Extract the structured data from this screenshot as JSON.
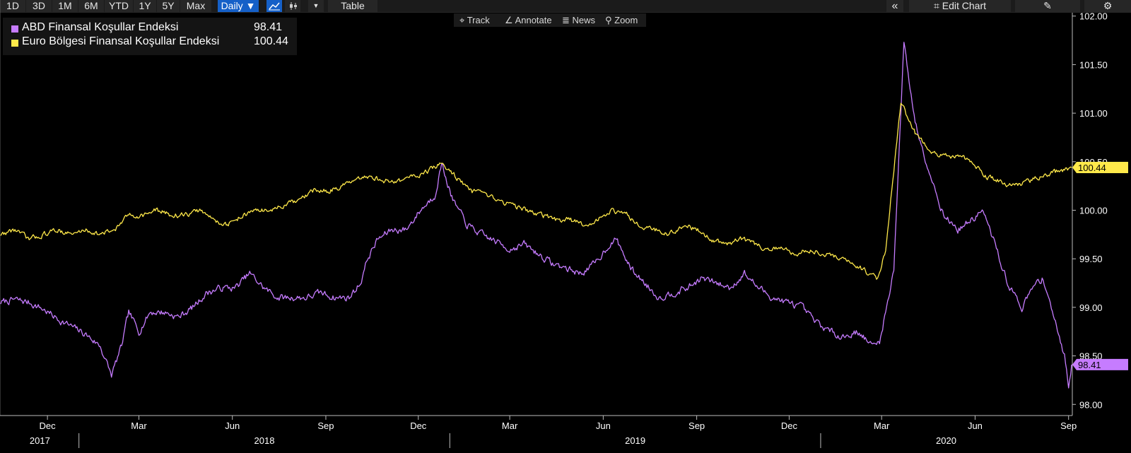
{
  "toolbar": {
    "ranges": [
      "1D",
      "3D",
      "1M",
      "6M",
      "YTD",
      "1Y",
      "5Y",
      "Max"
    ],
    "frequency": "Daily ▼",
    "table_label": "Table",
    "edit_chart_label": "Edit Chart",
    "collapse_icon": "double-chevron-left-icon",
    "settings_icon": "gear-icon"
  },
  "tools": {
    "track": "Track",
    "annotate": "Annotate",
    "news": "News",
    "zoom": "Zoom"
  },
  "colors": {
    "us": "#c67cff",
    "euro": "#ffe94a",
    "background": "#000000",
    "axis": "#ffffff"
  },
  "chart_data": {
    "type": "line",
    "x_axis": {
      "months": [
        "Dec",
        "Mar",
        "Jun",
        "Sep",
        "Dec",
        "Mar",
        "Jun",
        "Sep",
        "Dec",
        "Mar",
        "Jun",
        "Sep"
      ],
      "years": [
        "2017",
        "2018",
        "2019",
        "2020"
      ],
      "range": [
        "2017-10-16",
        "2020-09-04"
      ]
    },
    "y_axis": {
      "ticks": [
        "98.00",
        "98.50",
        "99.00",
        "99.50",
        "100.00",
        "100.50",
        "101.00",
        "101.50",
        "102.00"
      ],
      "range": [
        97.9,
        102.02
      ],
      "side": "right"
    },
    "series": [
      {
        "name": "ABD Finansal Koşullar Endeksi",
        "last_value": "98.41",
        "points": [
          [
            "2017-10-16",
            99.05
          ],
          [
            "2017-10-30",
            99.08
          ],
          [
            "2017-11-13",
            99.05
          ],
          [
            "2017-11-27",
            98.98
          ],
          [
            "2017-12-11",
            98.88
          ],
          [
            "2017-12-25",
            98.8
          ],
          [
            "2018-01-08",
            98.72
          ],
          [
            "2018-01-22",
            98.6
          ],
          [
            "2018-02-02",
            98.3
          ],
          [
            "2018-02-12",
            98.6
          ],
          [
            "2018-02-19",
            98.95
          ],
          [
            "2018-03-01",
            98.75
          ],
          [
            "2018-03-12",
            98.95
          ],
          [
            "2018-03-26",
            98.95
          ],
          [
            "2018-04-09",
            98.9
          ],
          [
            "2018-04-23",
            99.0
          ],
          [
            "2018-05-07",
            99.15
          ],
          [
            "2018-05-21",
            99.2
          ],
          [
            "2018-06-04",
            99.2
          ],
          [
            "2018-06-18",
            99.35
          ],
          [
            "2018-07-02",
            99.2
          ],
          [
            "2018-07-16",
            99.1
          ],
          [
            "2018-07-30",
            99.1
          ],
          [
            "2018-08-13",
            99.1
          ],
          [
            "2018-08-27",
            99.15
          ],
          [
            "2018-09-10",
            99.1
          ],
          [
            "2018-09-24",
            99.1
          ],
          [
            "2018-10-05",
            99.25
          ],
          [
            "2018-10-12",
            99.5
          ],
          [
            "2018-10-22",
            99.7
          ],
          [
            "2018-11-05",
            99.8
          ],
          [
            "2018-11-19",
            99.8
          ],
          [
            "2018-12-03",
            100.0
          ],
          [
            "2018-12-17",
            100.15
          ],
          [
            "2018-12-24",
            100.48
          ],
          [
            "2019-01-04",
            100.1
          ],
          [
            "2019-01-18",
            99.85
          ],
          [
            "2019-02-01",
            99.75
          ],
          [
            "2019-02-15",
            99.68
          ],
          [
            "2019-03-01",
            99.6
          ],
          [
            "2019-03-15",
            99.65
          ],
          [
            "2019-03-29",
            99.55
          ],
          [
            "2019-04-12",
            99.45
          ],
          [
            "2019-04-26",
            99.4
          ],
          [
            "2019-05-10",
            99.35
          ],
          [
            "2019-05-24",
            99.45
          ],
          [
            "2019-06-07",
            99.65
          ],
          [
            "2019-06-14",
            99.7
          ],
          [
            "2019-06-28",
            99.4
          ],
          [
            "2019-07-12",
            99.25
          ],
          [
            "2019-07-26",
            99.1
          ],
          [
            "2019-08-09",
            99.15
          ],
          [
            "2019-08-23",
            99.2
          ],
          [
            "2019-09-06",
            99.3
          ],
          [
            "2019-09-20",
            99.25
          ],
          [
            "2019-10-04",
            99.2
          ],
          [
            "2019-10-18",
            99.35
          ],
          [
            "2019-11-01",
            99.2
          ],
          [
            "2019-11-15",
            99.1
          ],
          [
            "2019-11-29",
            99.05
          ],
          [
            "2019-12-13",
            99.0
          ],
          [
            "2019-12-27",
            98.85
          ],
          [
            "2020-01-10",
            98.75
          ],
          [
            "2020-01-24",
            98.7
          ],
          [
            "2020-02-07",
            98.75
          ],
          [
            "2020-02-21",
            98.6
          ],
          [
            "2020-02-28",
            98.65
          ],
          [
            "2020-03-06",
            99.0
          ],
          [
            "2020-03-13",
            99.4
          ],
          [
            "2020-03-23",
            101.73
          ],
          [
            "2020-04-03",
            100.9
          ],
          [
            "2020-04-17",
            100.4
          ],
          [
            "2020-05-01",
            99.95
          ],
          [
            "2020-05-15",
            99.8
          ],
          [
            "2020-05-29",
            99.9
          ],
          [
            "2020-06-08",
            100.0
          ],
          [
            "2020-06-19",
            99.7
          ],
          [
            "2020-07-03",
            99.25
          ],
          [
            "2020-07-17",
            99.0
          ],
          [
            "2020-07-31",
            99.25
          ],
          [
            "2020-08-07",
            99.3
          ],
          [
            "2020-08-14",
            99.05
          ],
          [
            "2020-08-21",
            98.75
          ],
          [
            "2020-08-28",
            98.5
          ],
          [
            "2020-09-01",
            98.2
          ],
          [
            "2020-09-04",
            98.41
          ]
        ]
      },
      {
        "name": "Euro Bölgesi Finansal Koşullar Endeksi",
        "last_value": "100.44",
        "points": [
          [
            "2017-10-16",
            99.75
          ],
          [
            "2017-10-30",
            99.8
          ],
          [
            "2017-11-13",
            99.7
          ],
          [
            "2017-11-27",
            99.75
          ],
          [
            "2017-12-11",
            99.8
          ],
          [
            "2017-12-25",
            99.75
          ],
          [
            "2018-01-08",
            99.8
          ],
          [
            "2018-01-22",
            99.75
          ],
          [
            "2018-02-05",
            99.8
          ],
          [
            "2018-02-19",
            99.95
          ],
          [
            "2018-03-05",
            99.95
          ],
          [
            "2018-03-19",
            100.0
          ],
          [
            "2018-04-02",
            99.95
          ],
          [
            "2018-04-16",
            99.95
          ],
          [
            "2018-04-30",
            100.0
          ],
          [
            "2018-05-14",
            99.9
          ],
          [
            "2018-05-28",
            99.85
          ],
          [
            "2018-06-11",
            99.95
          ],
          [
            "2018-06-25",
            100.0
          ],
          [
            "2018-07-09",
            100.0
          ],
          [
            "2018-07-23",
            100.05
          ],
          [
            "2018-08-06",
            100.1
          ],
          [
            "2018-08-20",
            100.2
          ],
          [
            "2018-09-03",
            100.2
          ],
          [
            "2018-09-17",
            100.25
          ],
          [
            "2018-10-01",
            100.3
          ],
          [
            "2018-10-15",
            100.35
          ],
          [
            "2018-10-29",
            100.3
          ],
          [
            "2018-11-12",
            100.3
          ],
          [
            "2018-11-26",
            100.35
          ],
          [
            "2018-12-10",
            100.4
          ],
          [
            "2018-12-24",
            100.48
          ],
          [
            "2019-01-07",
            100.35
          ],
          [
            "2019-01-21",
            100.2
          ],
          [
            "2019-02-04",
            100.15
          ],
          [
            "2019-02-18",
            100.1
          ],
          [
            "2019-03-04",
            100.05
          ],
          [
            "2019-03-18",
            100.0
          ],
          [
            "2019-04-01",
            99.95
          ],
          [
            "2019-04-15",
            99.9
          ],
          [
            "2019-04-29",
            99.9
          ],
          [
            "2019-05-13",
            99.85
          ],
          [
            "2019-05-27",
            99.9
          ],
          [
            "2019-06-10",
            100.0
          ],
          [
            "2019-06-24",
            99.95
          ],
          [
            "2019-07-08",
            99.85
          ],
          [
            "2019-07-22",
            99.8
          ],
          [
            "2019-08-05",
            99.75
          ],
          [
            "2019-08-19",
            99.85
          ],
          [
            "2019-09-02",
            99.8
          ],
          [
            "2019-09-16",
            99.7
          ],
          [
            "2019-09-30",
            99.65
          ],
          [
            "2019-10-14",
            99.7
          ],
          [
            "2019-10-28",
            99.65
          ],
          [
            "2019-11-11",
            99.6
          ],
          [
            "2019-11-25",
            99.6
          ],
          [
            "2019-12-09",
            99.55
          ],
          [
            "2019-12-23",
            99.6
          ],
          [
            "2020-01-06",
            99.55
          ],
          [
            "2020-01-20",
            99.5
          ],
          [
            "2020-02-03",
            99.45
          ],
          [
            "2020-02-17",
            99.35
          ],
          [
            "2020-02-26",
            99.3
          ],
          [
            "2020-03-05",
            99.6
          ],
          [
            "2020-03-12",
            100.3
          ],
          [
            "2020-03-20",
            101.1
          ],
          [
            "2020-04-03",
            100.8
          ],
          [
            "2020-04-17",
            100.6
          ],
          [
            "2020-05-01",
            100.55
          ],
          [
            "2020-05-15",
            100.55
          ],
          [
            "2020-05-29",
            100.5
          ],
          [
            "2020-06-12",
            100.35
          ],
          [
            "2020-06-26",
            100.3
          ],
          [
            "2020-07-10",
            100.25
          ],
          [
            "2020-07-24",
            100.3
          ],
          [
            "2020-08-07",
            100.35
          ],
          [
            "2020-08-21",
            100.4
          ],
          [
            "2020-09-04",
            100.44
          ]
        ]
      }
    ],
    "legend_position": "top-left",
    "grid": false
  }
}
